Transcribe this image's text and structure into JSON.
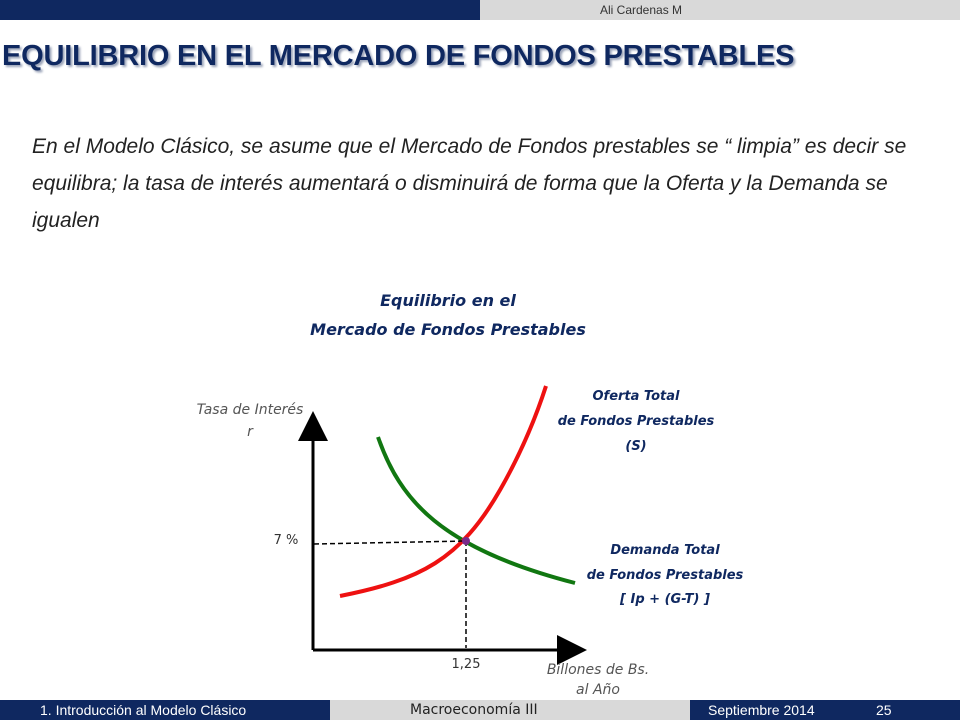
{
  "header": {
    "author": "Ali Cardenas M"
  },
  "slide": {
    "title": "EQUILIBRIO EN EL MERCADO DE FONDOS PRESTABLES",
    "body": "En el Modelo Clásico, se asume que el Mercado de Fondos prestables se “ limpia” es decir se equilibra; la tasa de interés aumentará o disminuirá de forma que la Oferta y la Demanda se igualen"
  },
  "chart_data": {
    "type": "line",
    "title_line1": "Equilibrio en el",
    "title_line2": "Mercado de Fondos Prestables",
    "ylabel_line1": "Tasa de Interés",
    "ylabel_line2": "r",
    "xlabel_line1": "Billones de Bs.",
    "xlabel_line2": "al Año",
    "equilibrium": {
      "x_label": "1,25",
      "y_label": "7 %"
    },
    "supply_label": [
      "Oferta Total",
      "de Fondos Prestables",
      "(S)"
    ],
    "demand_label": [
      "Demanda Total",
      "de Fondos Prestables",
      "[ Ip + (G-T) ]"
    ],
    "colors": {
      "supply": "#ee1111",
      "demand": "#117711",
      "point": "#7a2a8a"
    }
  },
  "footer": {
    "section": "1. Introducción al Modelo Clásico",
    "course": "Macroeconomía III",
    "date": "Septiembre 2014",
    "page": "25"
  }
}
